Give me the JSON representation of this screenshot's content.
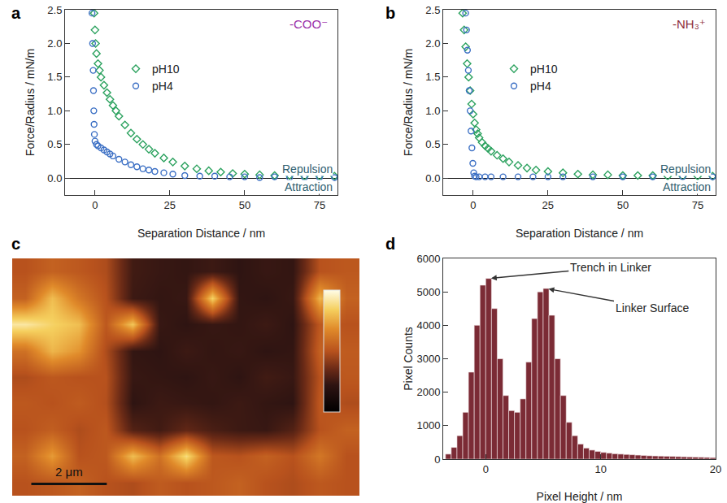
{
  "chart_data": [
    {
      "type": "scatter",
      "label": "a",
      "x_label": "Separation Distance / nm",
      "y_label": "Force/Radius / mN/m",
      "annotations": [
        "-COO⁻",
        "Repulsion",
        "Attraction"
      ],
      "xlim": [
        -10,
        81
      ],
      "xticks": [
        0,
        25,
        50,
        75
      ],
      "ylim": [
        -0.25,
        2.5
      ],
      "yticks": [
        {
          "value": 0,
          "label": "0.0"
        },
        0.5,
        {
          "value": 1,
          "label": "1.0"
        },
        1.5,
        {
          "value": 2,
          "label": "2.0"
        },
        2.5
      ],
      "grid": false,
      "legend": "upper left",
      "series": [
        {
          "name": "pH10",
          "color": "#2ca25f",
          "marker": "diamond-open",
          "x": [
            -0.3,
            0,
            0.2,
            0.5,
            1,
            1.5,
            2,
            3,
            4,
            5,
            6,
            7,
            8,
            10,
            12,
            14,
            16,
            18,
            20,
            23,
            26,
            30,
            34,
            38,
            42,
            46,
            50,
            55,
            60,
            65,
            70,
            75,
            80
          ],
          "values": [
            2.45,
            2.2,
            2.0,
            1.85,
            1.7,
            1.6,
            1.5,
            1.38,
            1.27,
            1.17,
            1.08,
            1.0,
            0.92,
            0.79,
            0.67,
            0.58,
            0.5,
            0.43,
            0.37,
            0.3,
            0.24,
            0.18,
            0.14,
            0.11,
            0.09,
            0.07,
            0.06,
            0.05,
            0.04,
            0.04,
            0.03,
            0.03,
            0.03
          ]
        },
        {
          "name": "pH4",
          "color": "#3b6fc4",
          "marker": "circle-open",
          "x": [
            -1.0,
            -0.8,
            -0.6,
            -0.5,
            -0.4,
            -0.3,
            -0.2,
            0,
            0.5,
            1,
            2,
            3,
            4,
            5,
            6,
            8,
            10,
            12,
            14,
            16,
            18,
            20,
            23,
            26,
            30,
            35,
            40,
            45,
            50,
            55,
            60,
            65,
            70,
            75,
            80
          ],
          "values": [
            2.45,
            2.0,
            1.6,
            1.3,
            1.0,
            0.8,
            0.65,
            0.55,
            0.5,
            0.48,
            0.45,
            0.42,
            0.39,
            0.36,
            0.33,
            0.28,
            0.24,
            0.2,
            0.17,
            0.14,
            0.12,
            0.1,
            0.08,
            0.06,
            0.04,
            0.03,
            0.03,
            0.02,
            0.02,
            0.01,
            0.02,
            0.01,
            0.01,
            0.01,
            0.01
          ]
        }
      ]
    },
    {
      "type": "scatter",
      "label": "b",
      "x_label": "Separation Distance / nm",
      "y_label": "Force/Radius / mN/m",
      "annotations": [
        "-NH₃⁺",
        "Repulsion",
        "Attraction"
      ],
      "xlim": [
        -10,
        81
      ],
      "xticks": [
        0,
        25,
        50,
        75
      ],
      "ylim": [
        -0.25,
        2.5
      ],
      "yticks": [
        {
          "value": 0,
          "label": "0.0"
        },
        0.5,
        {
          "value": 1,
          "label": "1.0"
        },
        1.5,
        {
          "value": 2,
          "label": "2.0"
        },
        2.5
      ],
      "grid": false,
      "legend": "upper left",
      "series": [
        {
          "name": "pH10",
          "color": "#2ca25f",
          "marker": "diamond-open",
          "x": [
            -3.5,
            -3,
            -2.5,
            -2,
            -1.5,
            -1,
            -0.5,
            0,
            0.5,
            1,
            1.5,
            2,
            3,
            4,
            5,
            6,
            8,
            10,
            12,
            15,
            18,
            21,
            25,
            30,
            35,
            40,
            45,
            50,
            55,
            60,
            65,
            70,
            75,
            80
          ],
          "values": [
            2.45,
            2.2,
            1.95,
            1.7,
            1.5,
            1.3,
            1.1,
            0.95,
            0.82,
            0.72,
            0.66,
            0.6,
            0.53,
            0.48,
            0.44,
            0.4,
            0.34,
            0.29,
            0.24,
            0.19,
            0.15,
            0.12,
            0.1,
            0.08,
            0.06,
            0.05,
            0.05,
            0.04,
            0.04,
            0.04,
            0.03,
            0.03,
            0.03,
            0.03
          ]
        },
        {
          "name": "pH4",
          "color": "#3b6fc4",
          "marker": "circle-open",
          "x": [
            -2.5,
            -2.2,
            -1.9,
            -1.6,
            -1.3,
            -1,
            -0.7,
            -0.4,
            -0.1,
            0.2,
            0.5,
            1,
            2,
            4,
            6,
            10,
            15,
            20,
            25,
            30,
            40,
            50,
            60,
            70,
            80
          ],
          "values": [
            2.45,
            2.2,
            1.9,
            1.6,
            1.3,
            1.0,
            0.7,
            0.45,
            0.22,
            0.08,
            0.03,
            0.02,
            0.02,
            0.02,
            0.02,
            0.02,
            0.02,
            0.02,
            0.02,
            0.02,
            0.02,
            0.02,
            0.02,
            0.02,
            0.02
          ]
        }
      ]
    },
    {
      "type": "heatmap",
      "label": "c",
      "tick_labels": false,
      "xlim": [
        0,
        9.2
      ],
      "ylim": [
        0,
        6.4
      ],
      "zlim": [
        0,
        1
      ],
      "scale_bar": {
        "length": 2,
        "label": "2 μm"
      },
      "z": [
        [
          0.5,
          0.55,
          0.52,
          0.48,
          0.26,
          0.24,
          0.23,
          0.25,
          0.22,
          0.24,
          0.23,
          0.5,
          0.52
        ],
        [
          0.55,
          0.8,
          0.62,
          0.5,
          0.25,
          0.23,
          0.24,
          0.85,
          0.23,
          0.22,
          0.24,
          0.78,
          0.55
        ],
        [
          0.92,
          0.85,
          0.8,
          0.52,
          0.82,
          0.24,
          0.22,
          0.24,
          0.23,
          0.25,
          0.22,
          0.52,
          0.5
        ],
        [
          0.6,
          0.78,
          0.7,
          0.48,
          0.23,
          0.22,
          0.25,
          0.23,
          0.24,
          0.22,
          0.23,
          0.55,
          0.53
        ],
        [
          0.48,
          0.52,
          0.5,
          0.5,
          0.24,
          0.23,
          0.22,
          0.24,
          0.22,
          0.26,
          0.24,
          0.5,
          0.52
        ],
        [
          0.52,
          0.5,
          0.53,
          0.49,
          0.22,
          0.25,
          0.24,
          0.23,
          0.25,
          0.23,
          0.22,
          0.52,
          0.48
        ],
        [
          0.5,
          0.54,
          0.48,
          0.52,
          0.3,
          0.26,
          0.33,
          0.28,
          0.25,
          0.24,
          0.3,
          0.5,
          0.55
        ],
        [
          0.55,
          0.72,
          0.5,
          0.52,
          0.8,
          0.6,
          0.88,
          0.52,
          0.5,
          0.55,
          0.5,
          0.62,
          0.5
        ],
        [
          0.5,
          0.52,
          0.55,
          0.5,
          0.48,
          0.53,
          0.5,
          0.52,
          0.55,
          0.5,
          0.48,
          0.52,
          0.5
        ]
      ]
    },
    {
      "type": "histogram",
      "label": "d",
      "x_label": "Pixel Height / nm",
      "y_label": "Pixel Counts",
      "annotations": [
        "Trench in Linker",
        "Linker Surface"
      ],
      "color": "#7b2b35",
      "grid": false,
      "xlim": [
        -3.7,
        20
      ],
      "xticks": [
        0,
        10,
        20
      ],
      "ylim": [
        0,
        6000
      ],
      "yticks": [
        0,
        1000,
        2000,
        3000,
        4000,
        5000,
        6000
      ],
      "bins": [
        -3.5,
        -3,
        -2.5,
        -2,
        -1.5,
        -1,
        -0.5,
        0,
        0.5,
        1,
        1.5,
        2,
        2.5,
        3,
        3.5,
        4,
        4.5,
        5,
        5.5,
        6,
        6.5,
        7,
        7.5,
        8,
        8.5,
        9,
        9.5,
        10,
        10.5,
        11,
        11.5,
        12,
        12.5,
        13,
        13.5,
        14,
        14.5,
        15,
        15.5,
        16,
        16.5,
        17,
        17.5,
        18,
        18.5,
        19,
        19.5,
        20
      ],
      "values": [
        150,
        350,
        700,
        1400,
        2600,
        4000,
        5200,
        5400,
        4500,
        3000,
        1900,
        1450,
        1400,
        1800,
        2900,
        4200,
        5000,
        5100,
        4300,
        3000,
        1900,
        1100,
        700,
        450,
        330,
        270,
        230,
        200,
        180,
        160,
        150,
        140,
        130,
        120,
        110,
        100,
        95,
        90,
        85,
        80,
        75,
        70,
        65,
        60,
        55,
        50,
        45
      ]
    }
  ]
}
